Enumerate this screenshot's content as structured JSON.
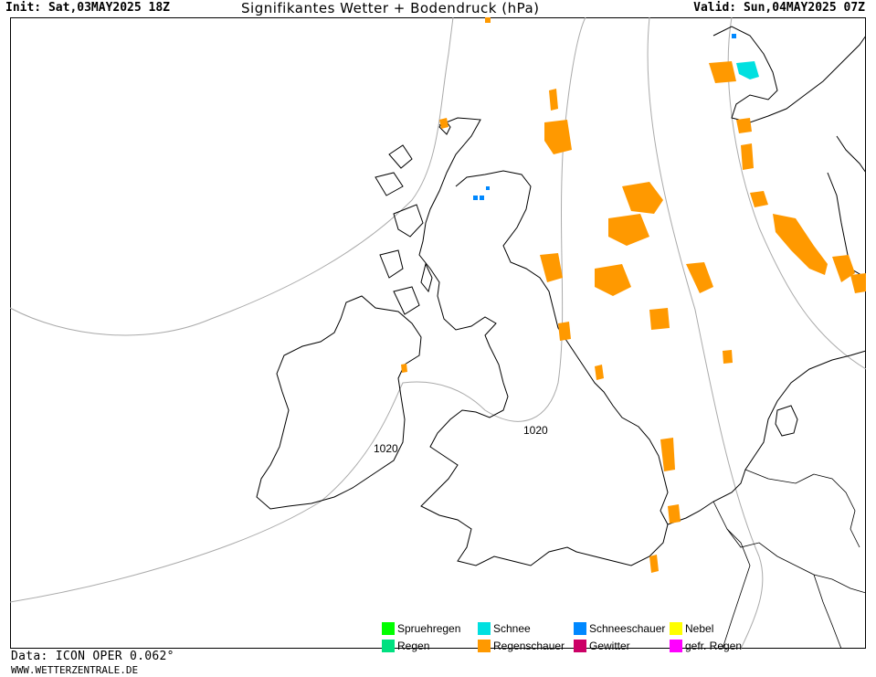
{
  "header": {
    "init": "Init: Sat,03MAY2025 18Z",
    "title": "Signifikantes Wetter +  Bodendruck (hPa)",
    "valid": "Valid: Sun,04MAY2025 07Z"
  },
  "isobars": [
    {
      "label": "1020"
    },
    {
      "label": "1020"
    }
  ],
  "legend": [
    {
      "label": "Spruehregen",
      "color": "#00ff00"
    },
    {
      "label": "Regen",
      "color": "#00e080"
    },
    {
      "label": "Schnee",
      "color": "#00e0e0"
    },
    {
      "label": "Regenschauer",
      "color": "#ff9900"
    },
    {
      "label": "Schneeschauer",
      "color": "#0088ff"
    },
    {
      "label": "Gewitter",
      "color": "#cc0066"
    },
    {
      "label": "Nebel",
      "color": "#ffff00"
    },
    {
      "label": "gefr. Regen",
      "color": "#ff00ff"
    }
  ],
  "footer": {
    "data": "Data: ICON OPER 0.062°",
    "source": "WWW.WETTERZENTRALE.DE"
  },
  "colors": {
    "showers": "#ff9900",
    "snow": "#00e0e0",
    "snow_showers": "#0088ff",
    "isobar": "#aaaaaa",
    "coast": "#000000"
  }
}
